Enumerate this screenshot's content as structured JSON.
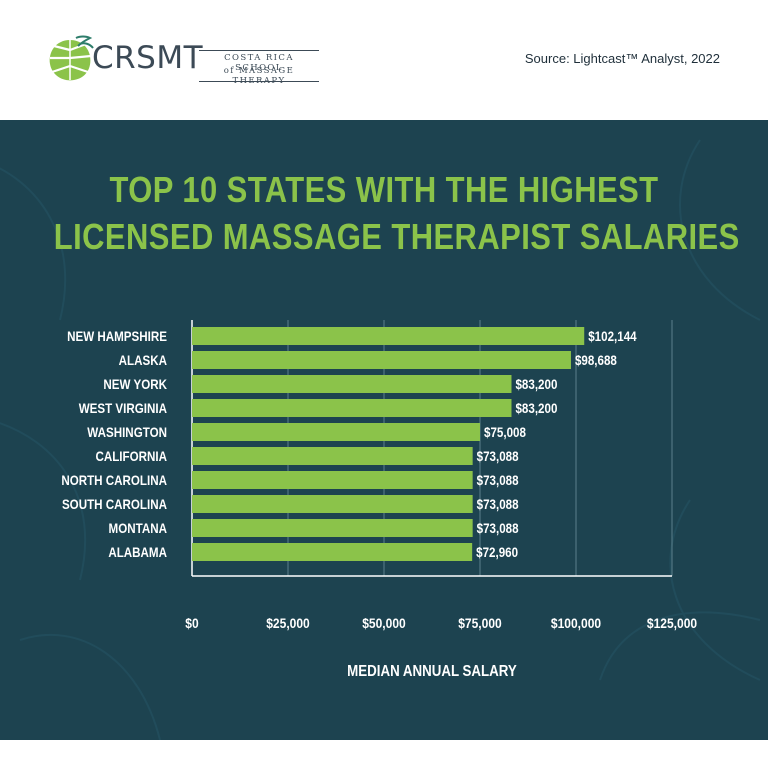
{
  "logo": {
    "wordmark": "CRSMT",
    "line1": "COSTA RICA SCHOOL",
    "line2": "of MASSAGE THERAPY"
  },
  "source": "Source: Lightcast™ Analyst, 2022",
  "colors": {
    "panel": "#1d4350",
    "accent": "#8bc34a",
    "text": "#ffffff"
  },
  "chart_data": {
    "type": "bar",
    "orientation": "horizontal",
    "title": [
      "TOP 10 STATES WITH THE HIGHEST",
      "LICENSED MASSAGE THERAPIST SALARIES"
    ],
    "xlabel": "MEDIAN ANNUAL SALARY",
    "ylabel": "",
    "xlim": [
      0,
      125000
    ],
    "xticks": [
      0,
      25000,
      50000,
      75000,
      100000,
      125000
    ],
    "xtick_labels": [
      "$0",
      "$25,000",
      "$50,000",
      "$75,000",
      "$100,000",
      "$125,000"
    ],
    "grid": "vertical",
    "categories": [
      "NEW HAMPSHIRE",
      "ALASKA",
      "NEW YORK",
      "WEST VIRGINIA",
      "WASHINGTON",
      "CALIFORNIA",
      "NORTH CAROLINA",
      "SOUTH CAROLINA",
      "MONTANA",
      "ALABAMA"
    ],
    "values": [
      102144,
      98688,
      83200,
      83200,
      75008,
      73088,
      73088,
      73088,
      73088,
      72960
    ],
    "data_labels": [
      "$102,144",
      "$98,688",
      "$83,200",
      "$83,200",
      "$75,008",
      "$73,088",
      "$73,088",
      "$73,088",
      "$73,088",
      "$72,960"
    ]
  }
}
